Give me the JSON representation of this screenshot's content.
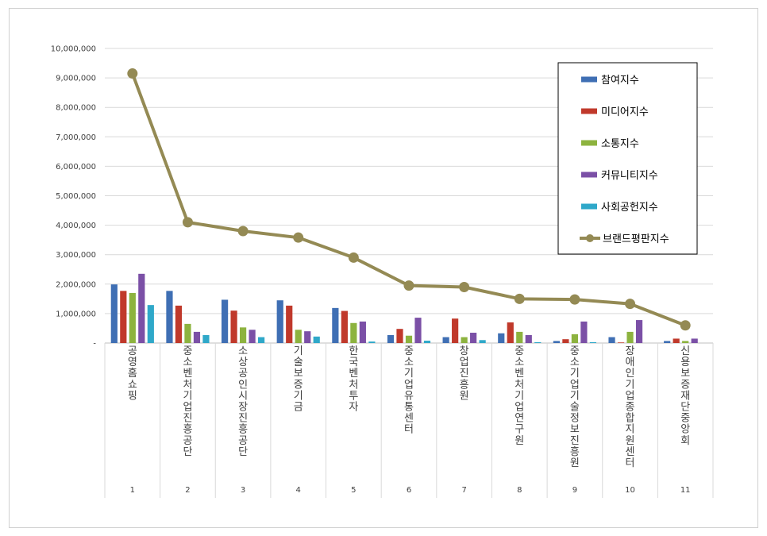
{
  "chart_data": {
    "type": "bar",
    "title": "",
    "xlabel": "",
    "ylabel": "",
    "ylim": [
      0,
      10000000
    ],
    "yticks": [
      0,
      1000000,
      2000000,
      3000000,
      4000000,
      5000000,
      6000000,
      7000000,
      8000000,
      9000000,
      10000000
    ],
    "ytick_labels": [
      "-",
      "1,000,000",
      "2,000,000",
      "3,000,000",
      "4,000,000",
      "5,000,000",
      "6,000,000",
      "7,000,000",
      "8,000,000",
      "9,000,000",
      "10,000,000"
    ],
    "grid": true,
    "legend_position": "top-right",
    "categories": [
      "공영홈쇼핑",
      "중소벤처기업진흥공단",
      "소상공인시장진흥공단",
      "기술보증기금",
      "한국벤처투자",
      "중소기업유통센터",
      "창업진흥원",
      "중소벤처기업연구원",
      "중소기업기술정보진흥원",
      "장애인기업종합지원센터",
      "신용보증재단중앙회"
    ],
    "ranks": [
      "1",
      "2",
      "3",
      "4",
      "5",
      "6",
      "7",
      "8",
      "9",
      "10",
      "11"
    ],
    "series": [
      {
        "name": "참여지수",
        "kind": "bar",
        "color": "#3f6fb4",
        "values": [
          1990000,
          1770000,
          1470000,
          1450000,
          1190000,
          270000,
          200000,
          330000,
          70000,
          200000,
          70000
        ]
      },
      {
        "name": "미디어지수",
        "kind": "bar",
        "color": "#c0392b",
        "values": [
          1770000,
          1270000,
          1100000,
          1270000,
          1090000,
          480000,
          830000,
          700000,
          130000,
          20000,
          150000
        ]
      },
      {
        "name": "소통지수",
        "kind": "bar",
        "color": "#8db33f",
        "values": [
          1700000,
          650000,
          530000,
          450000,
          680000,
          250000,
          200000,
          380000,
          300000,
          380000,
          70000
        ]
      },
      {
        "name": "커뮤니티지수",
        "kind": "bar",
        "color": "#7b50a6",
        "values": [
          2350000,
          380000,
          450000,
          400000,
          730000,
          860000,
          350000,
          270000,
          730000,
          780000,
          150000
        ]
      },
      {
        "name": "사회공헌지수",
        "kind": "bar",
        "color": "#2fa8c9",
        "values": [
          1290000,
          270000,
          200000,
          220000,
          50000,
          80000,
          100000,
          30000,
          30000,
          0,
          0
        ]
      },
      {
        "name": "브랜드평판지수",
        "kind": "line",
        "color": "#948a54",
        "values": [
          9150000,
          4100000,
          3800000,
          3580000,
          2900000,
          1950000,
          1900000,
          1500000,
          1480000,
          1330000,
          600000
        ]
      }
    ]
  }
}
